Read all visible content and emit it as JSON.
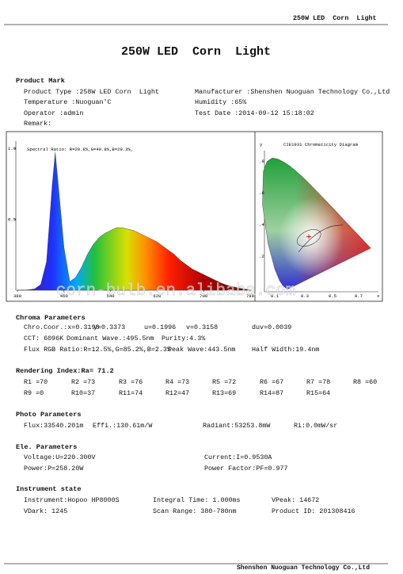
{
  "header": {
    "title": "250W LED  Corn  Light"
  },
  "title": "250W LED  Corn  Light",
  "product_mark": {
    "heading": "Product Mark",
    "left": [
      "Product Type :258W LED Corn  Light",
      "Temperature :Nuoguan'C",
      "Operator :admin",
      "Remark:"
    ],
    "right": [
      "Manufacturer :Shenshen Nuoguan Technology Co.,Ltd",
      "Humidity :65%",
      "Test Date :2014-09-12 15:18:02"
    ]
  },
  "spectrum": {
    "type": "area",
    "title": "Spectral Ratio: R=20.8%,G=49.8%,B=29.3%,",
    "x": [
      380,
      390,
      400,
      410,
      420,
      430,
      440,
      445,
      450,
      460,
      470,
      480,
      490,
      500,
      510,
      520,
      530,
      540,
      550,
      560,
      570,
      580,
      590,
      600,
      610,
      620,
      630,
      640,
      650,
      660,
      670,
      680,
      690,
      700,
      710,
      720,
      730,
      740,
      750,
      760,
      770,
      780
    ],
    "values": [
      0,
      0,
      0.003,
      0.01,
      0.04,
      0.2,
      0.75,
      0.97,
      0.75,
      0.3,
      0.06,
      0.09,
      0.16,
      0.25,
      0.32,
      0.37,
      0.4,
      0.42,
      0.44,
      0.44,
      0.43,
      0.42,
      0.4,
      0.38,
      0.36,
      0.34,
      0.31,
      0.28,
      0.25,
      0.21,
      0.18,
      0.15,
      0.13,
      0.11,
      0.09,
      0.07,
      0.05,
      0.035,
      0.025,
      0.015,
      0.008,
      0.003
    ],
    "xlim": [
      380,
      780
    ],
    "ylim": [
      0,
      1.05
    ],
    "xticks": [
      380,
      460,
      540,
      620,
      700,
      780
    ],
    "yticks": [
      {
        "value": 1,
        "label": "1.0"
      },
      0.5
    ]
  },
  "cie": {
    "title": "CIE1931 Chromaticity Diagram",
    "y_label": "y",
    "x_label": "x",
    "yticks": [
      ".8",
      ".6",
      ".4",
      ".2"
    ],
    "xticks": [
      "0.1",
      "0.3",
      "0.5",
      "0.7"
    ]
  },
  "watermark": "corn-bulb.en.alibaba.com",
  "chroma": {
    "heading": "Chroma Parameters",
    "rows": [
      [
        "Chro.Coor.:x=0.3198",
        "y=0.3373",
        "u=0.1996",
        "v=0.3158",
        "duv=0.0039"
      ],
      [
        "CCT: 6096K",
        "Dominant Wave.:495.5nm",
        "Purity:4.3%"
      ],
      [
        "Flux RGB Ratio:R=12.5%,G=85.2%,B=2.3%",
        "Peak Wave:443.5nm",
        "Half Width:19.4nm"
      ]
    ]
  },
  "rendering": {
    "heading": "Rendering Index:Ra= 71.2",
    "rows": [
      [
        "R1 =70",
        "R2 =73",
        "R3 =76",
        "R4 =73",
        "R5 =72",
        "R6 =67",
        "R7 =78",
        "R8 =60"
      ],
      [
        "R9 =0",
        "R10=37",
        "R11=74",
        "R12=47",
        "R13=69",
        "R14=87",
        "R15=64"
      ]
    ]
  },
  "photo": {
    "heading": "Photo Parameters",
    "rows": [
      [
        "Flux:33540.201m",
        "Effi.:130.61m/W",
        "Radiant:53253.8mW",
        "Ri:0.0mW/sr"
      ]
    ]
  },
  "electrical": {
    "heading": "Ele. Parameters",
    "rows": [
      [
        "Voltage:U=220.300V",
        "Current:I=0.9530A"
      ],
      [
        "Power:P=258.20W",
        "Power Factor:PF=0.977"
      ]
    ]
  },
  "instrument": {
    "heading": "Instrument state",
    "rows": [
      [
        "Instrument:Hopoo HP8000S",
        "Integral Time: 1.000ms",
        "VPeak: 14672"
      ],
      [
        "VDark: 1245",
        "Scan Range: 380-780nm",
        "Product ID: 201308416"
      ]
    ]
  },
  "footer": "Shenshen Nuoguan Technology Co.,Ltd"
}
